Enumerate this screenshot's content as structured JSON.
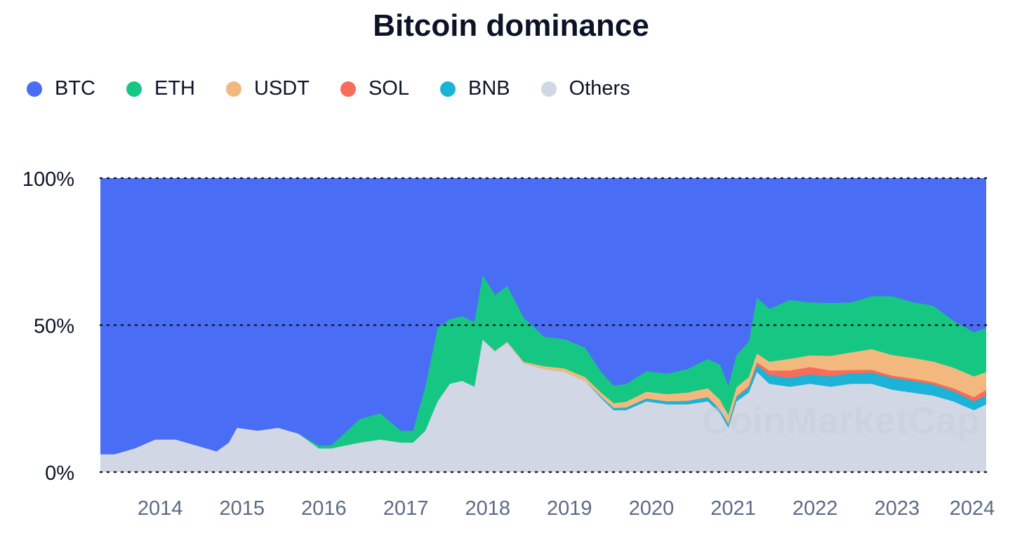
{
  "chart_data": {
    "type": "area",
    "stacked": true,
    "percent": true,
    "title": "Bitcoin dominance",
    "legend_position": "top-left",
    "y_ticks": [
      "100%",
      "50%",
      "0%"
    ],
    "y_range": [
      0,
      100
    ],
    "x_ticks": [
      "2014",
      "2015",
      "2016",
      "2017",
      "2018",
      "2019",
      "2020",
      "2021",
      "2022",
      "2023",
      "2024"
    ],
    "x_range": [
      2013.33,
      2024.15
    ],
    "watermark": "CoinMarketCap",
    "stack_order": [
      "Others",
      "BNB",
      "SOL",
      "USDT",
      "ETH",
      "BTC"
    ],
    "series": [
      {
        "name": "BTC",
        "color": "#4a6df5"
      },
      {
        "name": "ETH",
        "color": "#16c784"
      },
      {
        "name": "USDT",
        "color": "#f3b87e"
      },
      {
        "name": "SOL",
        "color": "#f76c5a"
      },
      {
        "name": "BNB",
        "color": "#1bb3d6"
      },
      {
        "name": "Others",
        "color": "#d2d7e5"
      }
    ],
    "x": [
      2013.33,
      2013.5,
      2013.75,
      2014.0,
      2014.25,
      2014.5,
      2014.75,
      2014.9,
      2015.0,
      2015.25,
      2015.5,
      2015.75,
      2016.0,
      2016.15,
      2016.5,
      2016.75,
      2017.0,
      2017.15,
      2017.3,
      2017.45,
      2017.6,
      2017.75,
      2017.9,
      2018.0,
      2018.15,
      2018.3,
      2018.5,
      2018.75,
      2019.0,
      2019.25,
      2019.45,
      2019.6,
      2019.75,
      2020.0,
      2020.25,
      2020.5,
      2020.75,
      2020.9,
      2021.0,
      2021.1,
      2021.25,
      2021.35,
      2021.5,
      2021.75,
      2022.0,
      2022.25,
      2022.5,
      2022.75,
      2023.0,
      2023.25,
      2023.5,
      2023.75,
      2024.0,
      2024.15
    ],
    "values": {
      "Others": [
        6,
        6,
        8,
        11,
        11,
        9,
        7,
        10,
        15,
        14,
        15,
        13,
        8,
        8,
        10,
        11,
        10,
        10,
        14,
        24,
        30,
        31,
        29,
        45,
        41,
        44,
        37,
        35,
        34,
        31,
        25,
        21,
        21,
        24,
        23,
        23,
        24,
        20,
        15,
        24,
        27,
        34,
        30,
        29,
        30,
        29,
        30,
        30,
        28,
        27,
        26,
        24,
        21,
        23
      ],
      "BNB": [
        0,
        0,
        0,
        0,
        0,
        0,
        0,
        0,
        0,
        0,
        0,
        0,
        0,
        0,
        0,
        0,
        0,
        0,
        0,
        0,
        0,
        0,
        0,
        0,
        0,
        0,
        0,
        0,
        0,
        0,
        0.5,
        0.8,
        0.9,
        1,
        1,
        1.2,
        1.4,
        1.2,
        1.2,
        1.5,
        1.8,
        2.5,
        3,
        3,
        3.2,
        3.5,
        3.5,
        3.8,
        4,
        4,
        3.8,
        3.5,
        3,
        3
      ],
      "SOL": [
        0,
        0,
        0,
        0,
        0,
        0,
        0,
        0,
        0,
        0,
        0,
        0,
        0,
        0,
        0,
        0,
        0,
        0,
        0,
        0,
        0,
        0,
        0,
        0,
        0,
        0,
        0,
        0,
        0,
        0,
        0,
        0,
        0,
        0,
        0,
        0,
        0.1,
        0.1,
        0.1,
        0.3,
        0.5,
        0.8,
        1.5,
        2.5,
        2.5,
        2,
        1.2,
        1,
        0.8,
        0.8,
        0.8,
        1,
        1.5,
        2
      ],
      "USDT": [
        0,
        0,
        0,
        0,
        0,
        0,
        0,
        0,
        0,
        0,
        0,
        0,
        0,
        0,
        0,
        0,
        0,
        0,
        0,
        0,
        0,
        0,
        0,
        0,
        0.2,
        0.3,
        0.5,
        1,
        1.2,
        1.3,
        1.4,
        1.6,
        2,
        2.3,
        2.5,
        2.8,
        3,
        3.2,
        3,
        3,
        3,
        3,
        3,
        4,
        4,
        5,
        6,
        7,
        7,
        7,
        7,
        7,
        7,
        6
      ],
      "ETH": [
        0,
        0,
        0,
        0,
        0,
        0,
        0,
        0,
        0,
        0,
        0,
        0,
        1,
        1,
        8,
        9,
        4,
        4,
        15,
        25,
        22,
        22,
        22,
        22,
        19,
        19,
        15,
        10,
        10,
        10,
        7,
        6,
        6,
        7,
        7,
        8,
        10,
        12,
        10,
        11,
        12,
        19,
        18,
        20,
        18,
        18,
        17,
        18,
        20,
        19,
        19,
        16,
        15,
        15
      ]
    }
  }
}
